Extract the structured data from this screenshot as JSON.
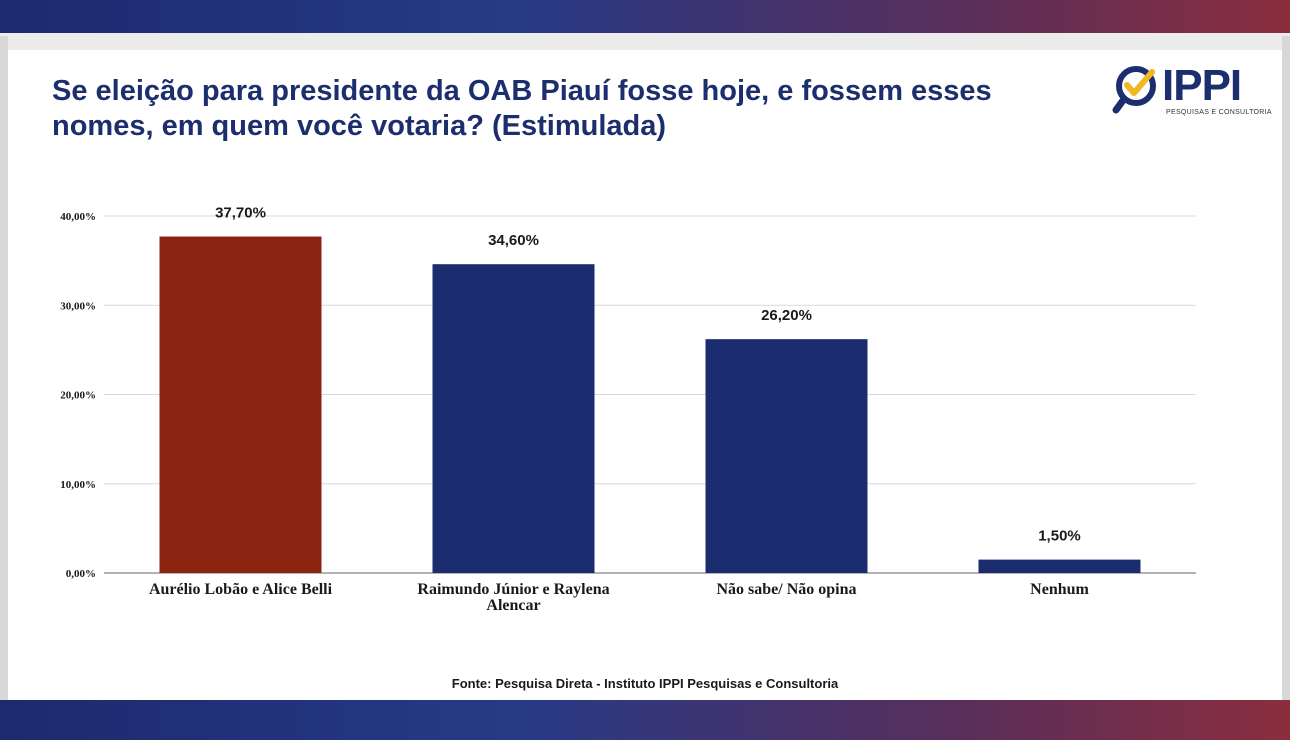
{
  "title": "Se eleição para presidente da OAB Piauí fosse hoje, e fossem esses nomes, em quem você votaria? (Estimulada)",
  "logo": {
    "text": "IPPI",
    "subtitle": "PESQUISAS E CONSULTORIA",
    "colors": {
      "navy": "#1c2e6e",
      "gold": "#f2b824"
    }
  },
  "chart_data": {
    "type": "bar",
    "title": "Se eleição para presidente da OAB Piauí fosse hoje, e fossem esses nomes, em quem você votaria? (Estimulada)",
    "categories": [
      [
        "Aurélio Lobão e Alice Belli"
      ],
      [
        "Raimundo Júnior e Raylena",
        "Alencar"
      ],
      [
        "Não sabe/ Não opina"
      ],
      [
        "Nenhum"
      ]
    ],
    "values": [
      37.7,
      34.6,
      26.2,
      1.5
    ],
    "data_labels": [
      "37,70%",
      "34,60%",
      "26,20%",
      "1,50%"
    ],
    "colors": [
      "#8a2310",
      "#1b2d6e",
      "#1b2d6e",
      "#1b2d6e"
    ],
    "ylim": [
      0,
      40
    ],
    "yticks": [
      0,
      10,
      20,
      30,
      40
    ],
    "ytick_labels": [
      "0,00%",
      "10,00%",
      "20,00%",
      "30,00%",
      "40,00%"
    ],
    "grid": true,
    "legend": "none"
  },
  "source": "Fonte: Pesquisa Direta - Instituto IPPI Pesquisas e Consultoria"
}
